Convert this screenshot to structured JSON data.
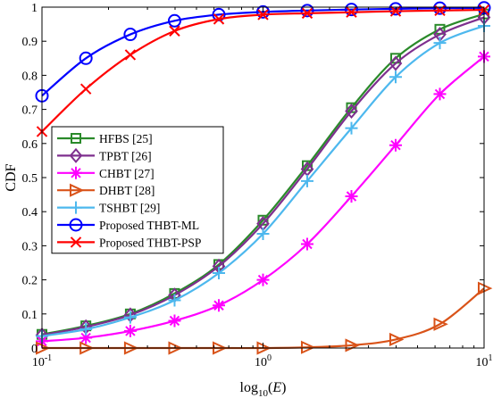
{
  "chart_data": {
    "type": "line",
    "xscale": "log",
    "xlim": [
      0.1,
      10
    ],
    "ylim": [
      0,
      1
    ],
    "xlabel": "log10(E)",
    "ylabel": "CDF",
    "grid": false,
    "legend_position": "middle-left",
    "x_ticks": [
      "10-1",
      "100",
      "101"
    ],
    "y_ticks": [
      "0",
      "0.1",
      "0.2",
      "0.3",
      "0.4",
      "0.5",
      "0.6",
      "0.7",
      "0.8",
      "0.9",
      "1"
    ],
    "x": [
      0.1,
      0.158,
      0.251,
      0.398,
      0.631,
      1.0,
      1.585,
      2.512,
      3.981,
      6.31,
      10
    ],
    "series": [
      {
        "name": "HFBS [25]",
        "color": "#2a8a2a",
        "marker": "square",
        "values": [
          0.04,
          0.065,
          0.1,
          0.16,
          0.245,
          0.375,
          0.535,
          0.705,
          0.85,
          0.935,
          0.98
        ]
      },
      {
        "name": "TPBT [26]",
        "color": "#7e2f8e",
        "marker": "diamond",
        "values": [
          0.038,
          0.062,
          0.097,
          0.155,
          0.24,
          0.365,
          0.525,
          0.695,
          0.835,
          0.92,
          0.97
        ]
      },
      {
        "name": "CHBT [27]",
        "color": "#ff00ff",
        "marker": "asterisk",
        "values": [
          0.02,
          0.03,
          0.05,
          0.08,
          0.125,
          0.2,
          0.305,
          0.445,
          0.595,
          0.745,
          0.855
        ]
      },
      {
        "name": "DHBT [28]",
        "color": "#d95319",
        "marker": "triangle-right",
        "values": [
          0.0,
          0.0,
          0.0,
          0.0,
          0.0,
          0.0,
          0.002,
          0.008,
          0.025,
          0.07,
          0.175
        ]
      },
      {
        "name": "TSHBT [29]",
        "color": "#4db8ee",
        "marker": "plus",
        "values": [
          0.035,
          0.055,
          0.09,
          0.14,
          0.22,
          0.335,
          0.49,
          0.645,
          0.795,
          0.895,
          0.945
        ]
      },
      {
        "name": "Proposed THBT-ML",
        "color": "#0000ff",
        "marker": "circle",
        "values": [
          0.74,
          0.85,
          0.92,
          0.96,
          0.978,
          0.986,
          0.99,
          0.993,
          0.995,
          0.997,
          0.998
        ]
      },
      {
        "name": "Proposed THBT-PSP",
        "color": "#ff0000",
        "marker": "cross",
        "values": [
          0.635,
          0.76,
          0.86,
          0.93,
          0.965,
          0.978,
          0.982,
          0.985,
          0.988,
          0.99,
          0.992
        ]
      }
    ]
  }
}
